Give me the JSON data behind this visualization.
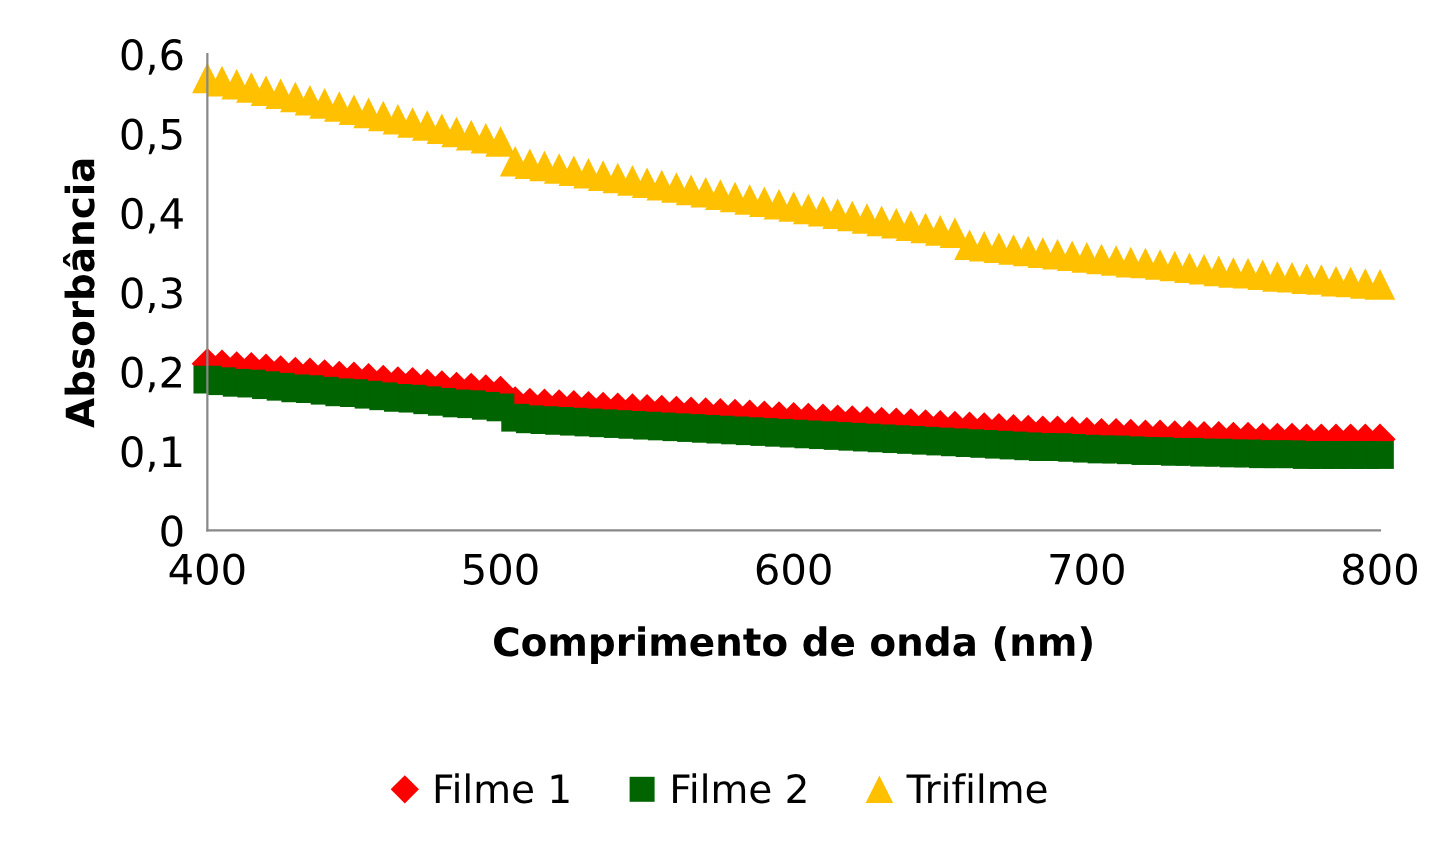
{
  "chart_data": {
    "type": "scatter",
    "xlabel": "Comprimento de onda (nm)",
    "ylabel": "Absorbância",
    "x": [
      400,
      405,
      410,
      415,
      420,
      425,
      430,
      435,
      440,
      445,
      450,
      455,
      460,
      465,
      470,
      475,
      480,
      485,
      490,
      495,
      500,
      505,
      510,
      515,
      520,
      525,
      530,
      535,
      540,
      545,
      550,
      555,
      560,
      565,
      570,
      575,
      580,
      585,
      590,
      595,
      600,
      605,
      610,
      615,
      620,
      625,
      630,
      635,
      640,
      645,
      650,
      655,
      660,
      665,
      670,
      675,
      680,
      685,
      690,
      695,
      700,
      705,
      710,
      715,
      720,
      725,
      730,
      735,
      740,
      745,
      750,
      755,
      760,
      765,
      770,
      775,
      780,
      785,
      790,
      795,
      800
    ],
    "series": [
      {
        "name": "Filme 1",
        "color": "#ff0000",
        "marker": "diamond",
        "values": [
          0.21,
          0.208,
          0.206,
          0.205,
          0.203,
          0.201,
          0.199,
          0.198,
          0.196,
          0.194,
          0.193,
          0.191,
          0.189,
          0.187,
          0.186,
          0.184,
          0.182,
          0.18,
          0.179,
          0.177,
          0.175,
          0.162,
          0.16,
          0.159,
          0.158,
          0.157,
          0.156,
          0.155,
          0.154,
          0.153,
          0.152,
          0.151,
          0.15,
          0.149,
          0.148,
          0.147,
          0.146,
          0.145,
          0.144,
          0.143,
          0.142,
          0.141,
          0.14,
          0.139,
          0.138,
          0.137,
          0.136,
          0.135,
          0.134,
          0.133,
          0.132,
          0.131,
          0.13,
          0.129,
          0.128,
          0.127,
          0.126,
          0.125,
          0.125,
          0.124,
          0.123,
          0.122,
          0.122,
          0.121,
          0.12,
          0.12,
          0.119,
          0.119,
          0.118,
          0.118,
          0.117,
          0.117,
          0.116,
          0.116,
          0.116,
          0.115,
          0.115,
          0.115,
          0.115,
          0.115,
          0.115
        ]
      },
      {
        "name": "Filme 2",
        "color": "#006400",
        "marker": "square",
        "values": [
          0.19,
          0.188,
          0.186,
          0.185,
          0.183,
          0.181,
          0.179,
          0.178,
          0.176,
          0.174,
          0.173,
          0.171,
          0.169,
          0.167,
          0.166,
          0.164,
          0.162,
          0.16,
          0.159,
          0.157,
          0.155,
          0.142,
          0.14,
          0.139,
          0.138,
          0.137,
          0.136,
          0.135,
          0.134,
          0.133,
          0.132,
          0.131,
          0.13,
          0.129,
          0.128,
          0.127,
          0.126,
          0.125,
          0.124,
          0.123,
          0.122,
          0.121,
          0.12,
          0.119,
          0.118,
          0.117,
          0.116,
          0.115,
          0.114,
          0.113,
          0.112,
          0.111,
          0.11,
          0.109,
          0.108,
          0.107,
          0.106,
          0.105,
          0.105,
          0.104,
          0.103,
          0.102,
          0.102,
          0.101,
          0.1,
          0.1,
          0.099,
          0.099,
          0.098,
          0.098,
          0.097,
          0.097,
          0.096,
          0.096,
          0.096,
          0.095,
          0.095,
          0.095,
          0.095,
          0.095,
          0.095
        ]
      },
      {
        "name": "Trifilme",
        "color": "#ffc000",
        "marker": "triangle",
        "values": [
          0.57,
          0.566,
          0.562,
          0.558,
          0.554,
          0.55,
          0.546,
          0.542,
          0.538,
          0.534,
          0.53,
          0.526,
          0.522,
          0.518,
          0.514,
          0.51,
          0.506,
          0.502,
          0.498,
          0.494,
          0.49,
          0.465,
          0.462,
          0.459,
          0.456,
          0.453,
          0.45,
          0.447,
          0.444,
          0.441,
          0.438,
          0.435,
          0.432,
          0.429,
          0.426,
          0.423,
          0.42,
          0.417,
          0.414,
          0.411,
          0.408,
          0.405,
          0.402,
          0.399,
          0.396,
          0.393,
          0.39,
          0.387,
          0.384,
          0.381,
          0.378,
          0.375,
          0.36,
          0.358,
          0.356,
          0.354,
          0.352,
          0.35,
          0.348,
          0.346,
          0.344,
          0.342,
          0.34,
          0.338,
          0.337,
          0.335,
          0.333,
          0.331,
          0.329,
          0.327,
          0.325,
          0.324,
          0.322,
          0.32,
          0.319,
          0.317,
          0.316,
          0.314,
          0.313,
          0.311,
          0.31
        ]
      }
    ],
    "xlim": [
      400,
      800
    ],
    "xticks": [
      400,
      500,
      600,
      700,
      800
    ],
    "ylim": [
      0,
      0.6
    ],
    "yticks": [
      0,
      {
        "value": 0.1,
        "label": "0,1"
      },
      {
        "value": 0.2,
        "label": "0,2"
      },
      {
        "value": 0.3,
        "label": "0,3"
      },
      {
        "value": 0.4,
        "label": "0,4"
      },
      {
        "value": 0.5,
        "label": "0,5"
      },
      {
        "value": 0.6,
        "label": "0,6"
      }
    ],
    "grid": false,
    "legend": "bottom"
  }
}
